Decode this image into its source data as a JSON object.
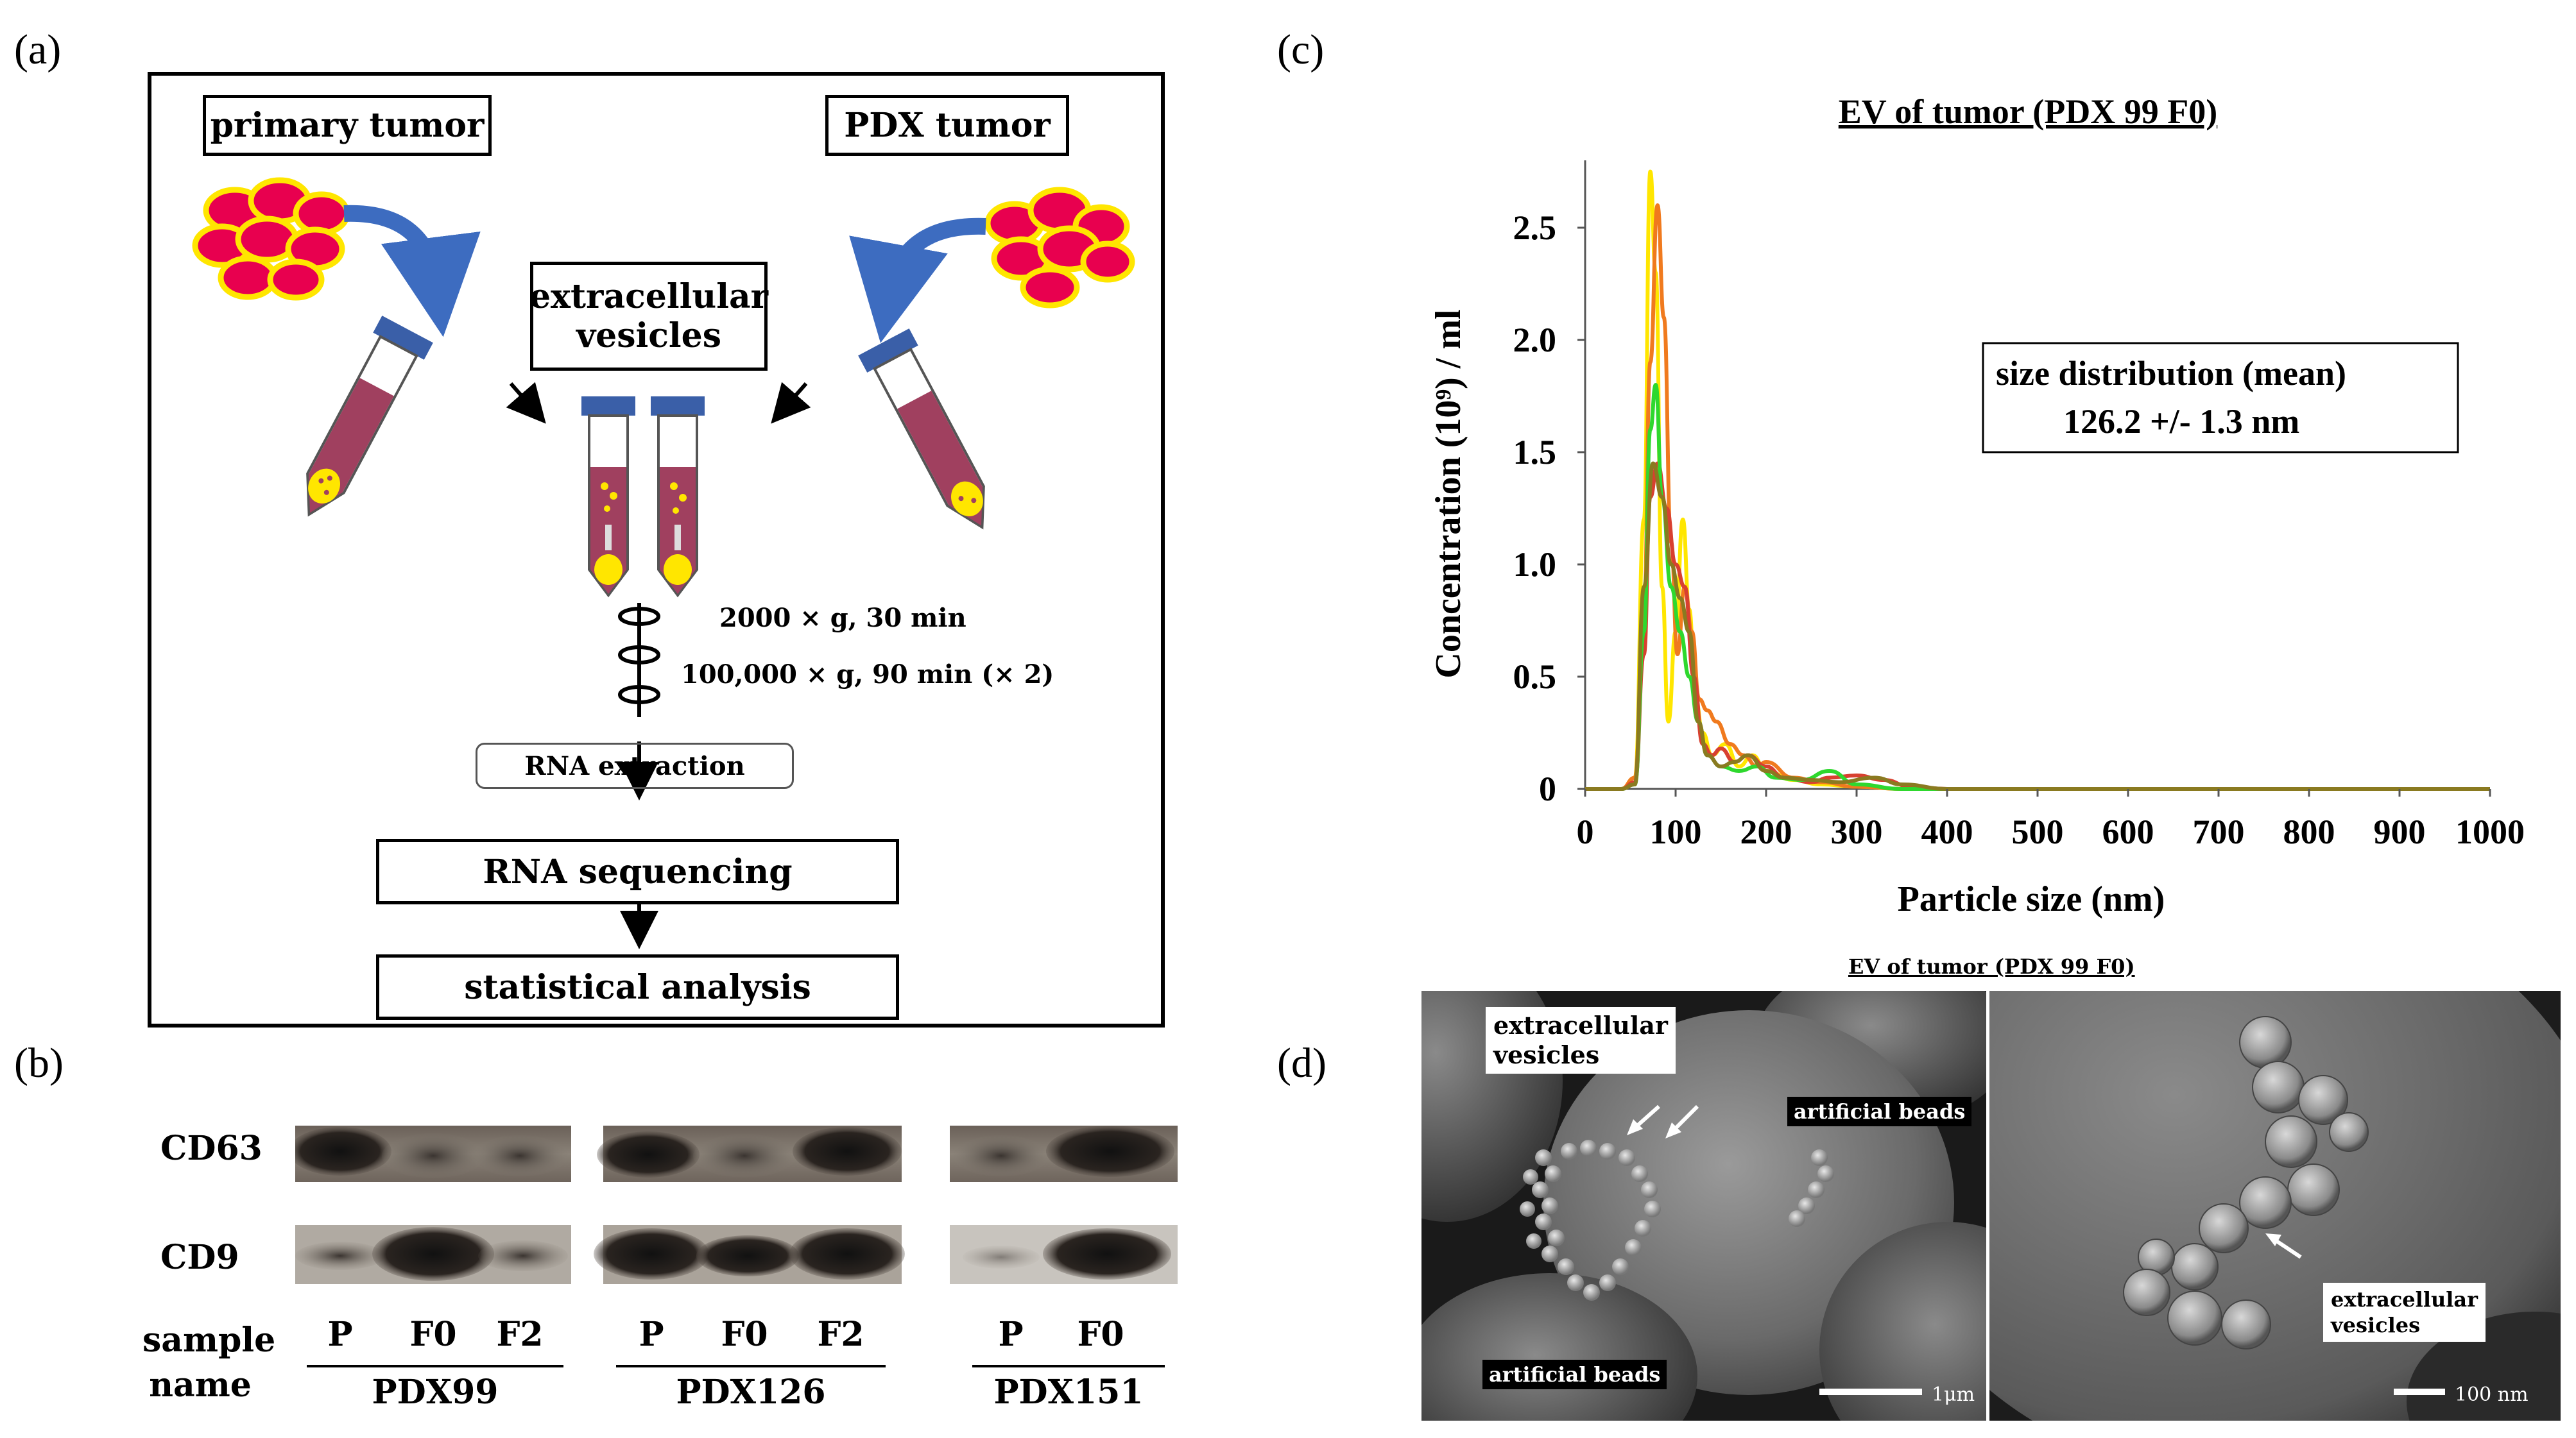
{
  "panels": {
    "a": "(a)",
    "b": "(b)",
    "c": "(c)",
    "d": "(d)"
  },
  "workflow": {
    "primary_tumor": "primary tumor",
    "pdx_tumor": "PDX tumor",
    "ev_line1": "extracellular",
    "ev_line2": "vesicles",
    "step1": "2000 × g, 30 min",
    "step2": "100,000 × g, 90 min (× 2)",
    "rna_extraction": "RNA extraction",
    "rna_sequencing": "RNA sequencing",
    "statistical_analysis": "statistical analysis",
    "colors": {
      "cell_fill": "#e8004f",
      "cell_outline": "#ffe600",
      "tube_liquid": "#a0405f",
      "cap": "#3a5fa8",
      "arrow": "#3d6cc0"
    }
  },
  "blot": {
    "markers": [
      "CD63",
      "CD9"
    ],
    "sample_label_line1": "sample",
    "sample_label_line2": "name",
    "groups": [
      {
        "name": "PDX99",
        "lanes": [
          "P",
          "F0",
          "F2"
        ]
      },
      {
        "name": "PDX126",
        "lanes": [
          "P",
          "F0",
          "F2"
        ]
      },
      {
        "name": "PDX151",
        "lanes": [
          "P",
          "F0"
        ]
      }
    ]
  },
  "chart_data": {
    "type": "line",
    "title": "EV of tumor (PDX 99 F0)",
    "xlabel": "Particle size (nm)",
    "ylabel": "Concentration (10⁹) / ml",
    "xlim": [
      0,
      1000
    ],
    "ylim": [
      0,
      2.8
    ],
    "xticks": [
      0,
      100,
      200,
      300,
      400,
      500,
      600,
      700,
      800,
      900,
      1000
    ],
    "yticks": [
      0,
      0.5,
      1.0,
      1.5,
      2.0,
      2.5
    ],
    "ytick_labels": [
      "0",
      "0.5",
      "1.0",
      "1.5",
      "2.0",
      "2.5"
    ],
    "grid": false,
    "annotation_line1": "size distribution (mean)",
    "annotation_line2": "126.2 +/- 1.3 nm",
    "series": [
      {
        "color": "#ffe600",
        "x": [
          0,
          40,
          55,
          65,
          72,
          78,
          85,
          92,
          100,
          108,
          115,
          122,
          130,
          140,
          155,
          170,
          185,
          200,
          230,
          260,
          300,
          350,
          400,
          1000
        ],
        "y": [
          0,
          0,
          0.05,
          1.2,
          2.75,
          2.3,
          0.9,
          0.3,
          0.7,
          1.2,
          0.8,
          0.4,
          0.25,
          0.15,
          0.2,
          0.1,
          0.15,
          0.08,
          0.04,
          0.02,
          0.01,
          0,
          0,
          0
        ]
      },
      {
        "color": "#f07a1e",
        "x": [
          0,
          40,
          55,
          65,
          72,
          80,
          87,
          95,
          102,
          110,
          118,
          126,
          135,
          145,
          160,
          175,
          190,
          200,
          230,
          260,
          300,
          350,
          400,
          1000
        ],
        "y": [
          0,
          0,
          0.05,
          0.8,
          1.9,
          2.6,
          2.1,
          1.1,
          0.6,
          0.9,
          0.7,
          0.4,
          0.35,
          0.3,
          0.2,
          0.15,
          0.1,
          0.12,
          0.05,
          0.03,
          0.01,
          0,
          0,
          0
        ]
      },
      {
        "color": "#d84030",
        "x": [
          0,
          40,
          55,
          65,
          72,
          80,
          90,
          100,
          110,
          120,
          130,
          140,
          150,
          165,
          180,
          200,
          220,
          250,
          270,
          300,
          330,
          360,
          400,
          1000
        ],
        "y": [
          0,
          0,
          0.03,
          0.6,
          1.3,
          1.45,
          1.25,
          1.0,
          0.9,
          0.5,
          0.2,
          0.15,
          0.18,
          0.12,
          0.15,
          0.1,
          0.05,
          0.03,
          0.05,
          0.06,
          0.04,
          0.01,
          0,
          0
        ]
      },
      {
        "color": "#2ed82e",
        "x": [
          0,
          40,
          55,
          65,
          72,
          78,
          85,
          95,
          105,
          115,
          125,
          135,
          150,
          170,
          190,
          210,
          240,
          270,
          300,
          350,
          400,
          1000
        ],
        "y": [
          0,
          0,
          0.02,
          0.7,
          1.6,
          1.8,
          1.3,
          0.9,
          0.7,
          0.5,
          0.3,
          0.15,
          0.1,
          0.08,
          0.1,
          0.05,
          0.04,
          0.08,
          0.02,
          0,
          0,
          0
        ]
      },
      {
        "color": "#8a7a20",
        "x": [
          0,
          40,
          55,
          65,
          75,
          85,
          95,
          105,
          115,
          125,
          135,
          150,
          165,
          180,
          200,
          220,
          250,
          280,
          320,
          350,
          400,
          1000
        ],
        "y": [
          0,
          0,
          0.02,
          0.9,
          1.45,
          1.3,
          1.0,
          0.85,
          0.7,
          0.3,
          0.15,
          0.1,
          0.12,
          0.15,
          0.08,
          0.05,
          0.04,
          0.03,
          0.05,
          0.02,
          0,
          0
        ]
      }
    ]
  },
  "sem": {
    "title": "EV of tumor (PDX 99 F0)",
    "left_ev_line1": "extracellular",
    "left_ev_line2": "vesicles",
    "left_beads_top": "artificial beads",
    "left_beads_bottom": "artificial beads",
    "left_scale": "1μm",
    "right_ev_line1": "extracellular",
    "right_ev_line2": "vesicles",
    "right_scale": "100 nm"
  }
}
